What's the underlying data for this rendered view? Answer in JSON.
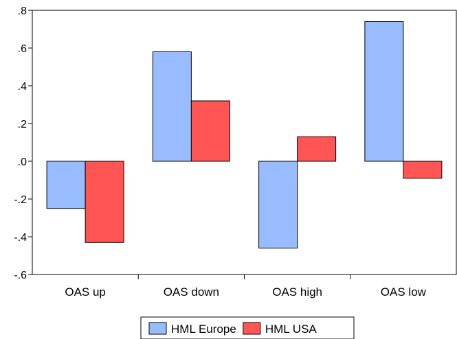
{
  "chart_data": {
    "type": "bar",
    "categories": [
      "OAS up",
      "OAS down",
      "OAS high",
      "OAS low"
    ],
    "series": [
      {
        "name": "HML Europe",
        "values": [
          -0.25,
          0.58,
          -0.46,
          0.74
        ],
        "color": "#99bbff"
      },
      {
        "name": "HML USA",
        "values": [
          -0.43,
          0.32,
          0.13,
          -0.09
        ],
        "color": "#ff5555"
      }
    ],
    "title": "",
    "xlabel": "",
    "ylabel": "",
    "ylim": [
      -0.6,
      0.8
    ],
    "yticks": [
      0.8,
      0.6,
      0.4,
      0.2,
      0.0,
      -0.2,
      -0.4,
      -0.6
    ],
    "ytick_labels": [
      ".8",
      ".6",
      ".4",
      ".2",
      ".0",
      "-.2",
      "-.4",
      "-.6"
    ],
    "grid": false,
    "legend_position": "bottom-center"
  }
}
